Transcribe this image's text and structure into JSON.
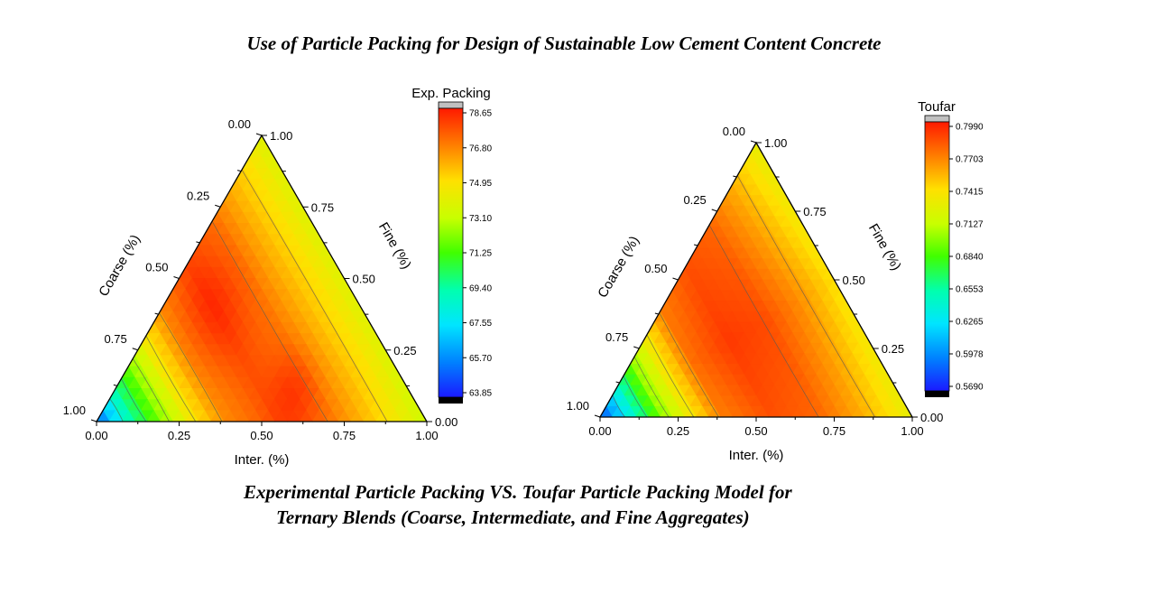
{
  "page": {
    "title": "Use of Particle Packing for Design of Sustainable Low Cement Content Concrete",
    "caption_line1": "Experimental Particle Packing VS. Toufar Particle Packing Model for",
    "caption_line2": "Ternary Blends (Coarse, Intermediate, and Fine Aggregates)"
  },
  "chart_data": [
    {
      "type": "ternary-contour",
      "axes": {
        "bottom": {
          "label": "Inter. (%)",
          "ticks": [
            "0.00",
            "0.25",
            "0.50",
            "0.75",
            "1.00"
          ]
        },
        "left": {
          "label": "Coarse (%)",
          "ticks": [
            "0.00",
            "0.25",
            "0.50",
            "0.75",
            "1.00"
          ]
        },
        "right": {
          "label": "Fine (%)",
          "ticks": [
            "1.00",
            "0.75",
            "0.50",
            "0.25",
            "0.00"
          ]
        }
      },
      "colorbar": {
        "title": "Exp. Packing",
        "ticks": [
          "78.65",
          "76.80",
          "74.95",
          "73.10",
          "71.25",
          "69.40",
          "67.55",
          "65.70",
          "63.85"
        ],
        "range": [
          63.85,
          78.65
        ]
      },
      "pattern": {
        "levels_by_coarse": [
          [
            0.0,
            73.8
          ],
          [
            0.12,
            75.2
          ],
          [
            0.3,
            77.0
          ],
          [
            0.45,
            77.6
          ],
          [
            0.6,
            76.6
          ],
          [
            0.7,
            74.8
          ],
          [
            0.8,
            72.2
          ],
          [
            0.9,
            69.2
          ],
          [
            1.0,
            65.0
          ]
        ]
      }
    },
    {
      "type": "ternary-contour",
      "axes": {
        "bottom": {
          "label": "Inter. (%)",
          "ticks": [
            "0.00",
            "0.25",
            "0.50",
            "0.75",
            "1.00"
          ]
        },
        "left": {
          "label": "Coarse (%)",
          "ticks": [
            "0.00",
            "0.25",
            "0.50",
            "0.75",
            "1.00"
          ]
        },
        "right": {
          "label": "Fine (%)",
          "ticks": [
            "1.00",
            "0.75",
            "0.50",
            "0.25",
            "0.00"
          ]
        }
      },
      "colorbar": {
        "title": "Toufar",
        "ticks": [
          "0.7990",
          "0.7703",
          "0.7415",
          "0.7127",
          "0.6840",
          "0.6553",
          "0.6265",
          "0.5978",
          "0.5690"
        ],
        "range": [
          0.569,
          0.799
        ]
      },
      "pattern": {
        "levels_by_coarse": [
          [
            0.0,
            0.74
          ],
          [
            0.15,
            0.765
          ],
          [
            0.3,
            0.785
          ],
          [
            0.45,
            0.79
          ],
          [
            0.6,
            0.775
          ],
          [
            0.7,
            0.74
          ],
          [
            0.8,
            0.7
          ],
          [
            0.9,
            0.64
          ],
          [
            1.0,
            0.58
          ]
        ]
      }
    }
  ]
}
